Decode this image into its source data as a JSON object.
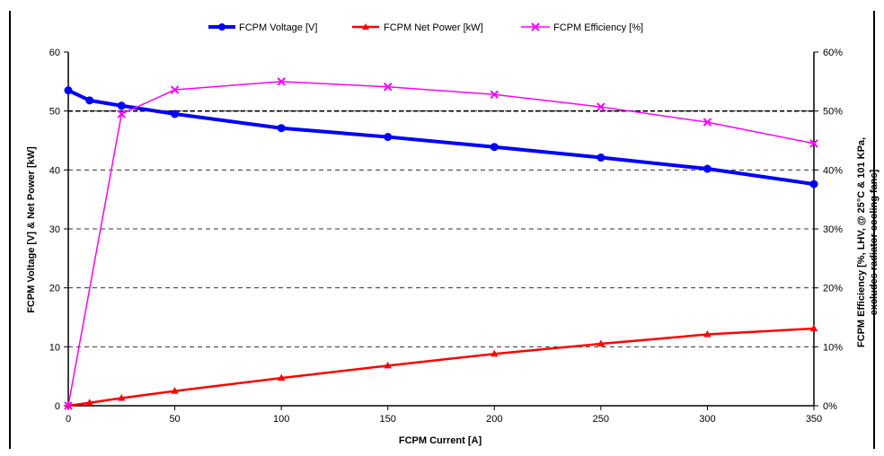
{
  "chart_data": {
    "type": "line",
    "x_label": "FCPM Current [A]",
    "y_left_label": "FCPM Voltage [V] & Net Power [kW]",
    "y_right_label_line1": "FCPM Efficiency [%, LHV, @ 25°C & 101 KPa,",
    "y_right_label_line2": "excludes radiator cooling fans]",
    "x_ticks": [
      "0",
      "50",
      "100",
      "150",
      "200",
      "250",
      "300",
      "350"
    ],
    "y_left_ticks": [
      "0",
      "10",
      "20",
      "30",
      "40",
      "50",
      "60"
    ],
    "y_right_ticks": [
      "0%",
      "10%",
      "20%",
      "30%",
      "40%",
      "50%",
      "60%"
    ],
    "xlim": [
      0,
      350
    ],
    "y_left_lim": [
      0,
      60
    ],
    "y_right_lim": [
      0,
      60
    ],
    "grid": "horizontal dashed",
    "legend_position": "top",
    "series": [
      {
        "name": "FCPM Voltage [V]",
        "color": "#0000ff",
        "marker": "circle",
        "axis": "left",
        "x": [
          0,
          10,
          25,
          50,
          100,
          150,
          200,
          250,
          300,
          350
        ],
        "y": [
          53.5,
          51.8,
          50.9,
          49.5,
          47.1,
          45.6,
          43.9,
          42.1,
          40.2,
          37.6
        ]
      },
      {
        "name": "FCPM Net Power [kW]",
        "color": "#ff0000",
        "marker": "triangle",
        "axis": "left",
        "x": [
          0,
          10,
          25,
          50,
          100,
          150,
          200,
          250,
          300,
          350
        ],
        "y": [
          0,
          0.5,
          1.3,
          2.5,
          4.7,
          6.8,
          8.8,
          10.5,
          12.1,
          13.1
        ]
      },
      {
        "name": "FCPM Efficiency [%]",
        "color": "#ff00ff",
        "marker": "x",
        "axis": "right",
        "x": [
          0,
          25,
          50,
          100,
          150,
          200,
          250,
          300,
          350
        ],
        "y": [
          0,
          49.5,
          53.6,
          55.0,
          54.1,
          52.8,
          50.7,
          48.1,
          44.5
        ]
      }
    ],
    "reference_line": {
      "y": 50,
      "style": "dashed",
      "color": "#000000"
    }
  }
}
